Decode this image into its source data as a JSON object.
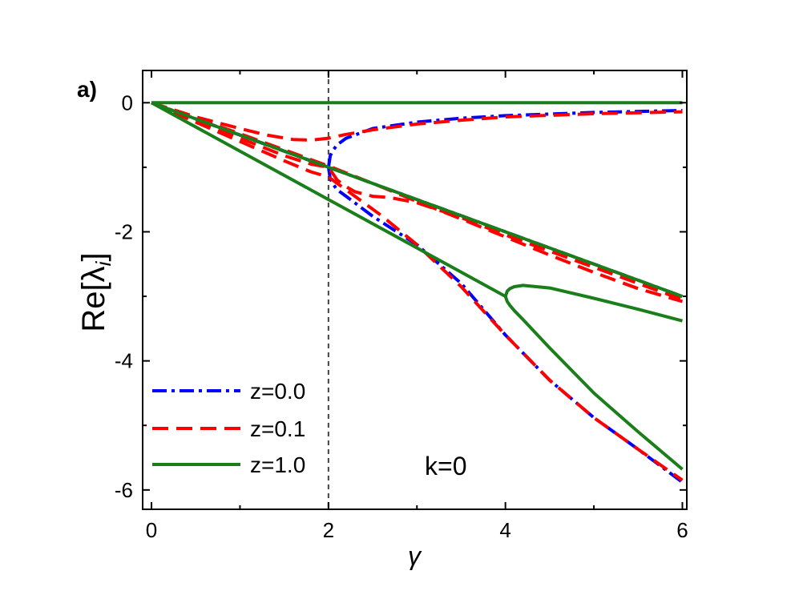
{
  "panel_label": "a)",
  "annotation": "k=0",
  "chart_data": {
    "type": "line",
    "xlabel": "γ",
    "ylabel_main": "Re[λ",
    "ylabel_sub": "i",
    "ylabel_close": "]",
    "xlim": [
      -0.1,
      6.05
    ],
    "ylim": [
      -6.3,
      0.5
    ],
    "x_ticks": [
      0,
      2,
      4,
      6
    ],
    "x_tick_labels": [
      "0",
      "2",
      "4",
      "6"
    ],
    "y_ticks": [
      0,
      -2,
      -4,
      -6
    ],
    "y_tick_labels": [
      "0",
      "-2",
      "-4",
      "-6"
    ],
    "vertical_marker_x": 2,
    "legend_position": "bottom-left",
    "legend": [
      {
        "label": "z=0.0",
        "color": "#0000ff",
        "style": "dashdot"
      },
      {
        "label": "z=0.1",
        "color": "#ff0000",
        "style": "dashed"
      },
      {
        "label": "z=1.0",
        "color": "#1a7f1a",
        "style": "solid"
      }
    ],
    "series": [
      {
        "legend_index": 0,
        "points": [
          [
            0,
            0
          ],
          [
            1,
            -0.5
          ],
          [
            2,
            -1
          ],
          [
            3,
            -1.5
          ],
          [
            4,
            -2
          ],
          [
            5,
            -2.5
          ],
          [
            6,
            -3
          ]
        ]
      },
      {
        "legend_index": 0,
        "points": [
          [
            0,
            0
          ],
          [
            0.5,
            -0.25
          ],
          [
            1,
            -0.5
          ],
          [
            1.5,
            -0.75
          ],
          [
            1.8,
            -0.9
          ],
          [
            2,
            -1
          ]
        ]
      },
      {
        "legend_index": 0,
        "points": [
          [
            2,
            -1
          ],
          [
            2.02,
            -0.82
          ],
          [
            2.05,
            -0.74
          ],
          [
            2.1,
            -0.65
          ],
          [
            2.2,
            -0.55
          ],
          [
            2.5,
            -0.4
          ],
          [
            3,
            -0.3
          ],
          [
            3.5,
            -0.24
          ],
          [
            4,
            -0.2
          ],
          [
            5,
            -0.15
          ],
          [
            6,
            -0.12
          ]
        ]
      },
      {
        "legend_index": 0,
        "points": [
          [
            2,
            -1
          ],
          [
            2.02,
            -1.18
          ],
          [
            2.05,
            -1.26
          ],
          [
            2.1,
            -1.35
          ],
          [
            2.2,
            -1.45
          ],
          [
            2.5,
            -1.76
          ],
          [
            3,
            -2.2
          ],
          [
            3.5,
            -2.8
          ],
          [
            4,
            -3.6
          ],
          [
            4.5,
            -4.3
          ],
          [
            5,
            -4.88
          ],
          [
            5.5,
            -5.37
          ],
          [
            6,
            -5.88
          ]
        ]
      },
      {
        "legend_index": 1,
        "points": [
          [
            0,
            0
          ],
          [
            0.5,
            -0.22
          ],
          [
            1,
            -0.4
          ],
          [
            1.3,
            -0.5
          ],
          [
            1.6,
            -0.57
          ],
          [
            1.8,
            -0.58
          ],
          [
            2,
            -0.55
          ],
          [
            2.2,
            -0.49
          ],
          [
            2.5,
            -0.42
          ],
          [
            3,
            -0.33
          ],
          [
            3.5,
            -0.27
          ],
          [
            4,
            -0.22
          ],
          [
            5,
            -0.17
          ],
          [
            6,
            -0.14
          ]
        ]
      },
      {
        "legend_index": 1,
        "points": [
          [
            0,
            0
          ],
          [
            0.5,
            -0.3
          ],
          [
            1,
            -0.6
          ],
          [
            1.5,
            -0.9
          ],
          [
            1.8,
            -1.07
          ],
          [
            2,
            -1.15
          ],
          [
            2.2,
            -1.35
          ],
          [
            2.4,
            -1.55
          ],
          [
            2.6,
            -1.75
          ],
          [
            3,
            -2.2
          ],
          [
            3.5,
            -2.85
          ],
          [
            4,
            -3.6
          ],
          [
            4.5,
            -4.3
          ],
          [
            5,
            -4.88
          ],
          [
            5.5,
            -5.37
          ],
          [
            6,
            -5.85
          ]
        ]
      },
      {
        "legend_index": 1,
        "points": [
          [
            0,
            0
          ],
          [
            0.5,
            -0.27
          ],
          [
            1,
            -0.55
          ],
          [
            1.5,
            -0.82
          ],
          [
            1.8,
            -0.95
          ],
          [
            2,
            -1.0
          ],
          [
            2.1,
            -1.2
          ],
          [
            2.2,
            -1.3
          ],
          [
            2.3,
            -1.38
          ],
          [
            2.5,
            -1.45
          ],
          [
            2.7,
            -1.47
          ],
          [
            3,
            -1.55
          ],
          [
            3.5,
            -1.78
          ],
          [
            4,
            -2.05
          ],
          [
            4.5,
            -2.3
          ],
          [
            5,
            -2.55
          ],
          [
            5.5,
            -2.8
          ],
          [
            6,
            -3.05
          ]
        ]
      },
      {
        "legend_index": 1,
        "points": [
          [
            0,
            0
          ],
          [
            0.5,
            -0.24
          ],
          [
            1,
            -0.48
          ],
          [
            1.5,
            -0.73
          ],
          [
            2,
            -0.98
          ],
          [
            2.5,
            -1.25
          ],
          [
            3,
            -1.53
          ],
          [
            3.5,
            -1.8
          ],
          [
            4,
            -2.08
          ],
          [
            4.5,
            -2.36
          ],
          [
            5,
            -2.63
          ],
          [
            5.5,
            -2.88
          ],
          [
            6,
            -3.08
          ]
        ]
      },
      {
        "legend_index": 2,
        "points": [
          [
            0,
            0
          ],
          [
            6,
            0
          ]
        ]
      },
      {
        "legend_index": 2,
        "points": [
          [
            0,
            0
          ],
          [
            1,
            -0.5
          ],
          [
            2,
            -1
          ],
          [
            3,
            -1.5
          ],
          [
            4,
            -2
          ],
          [
            5,
            -2.5
          ],
          [
            6,
            -3
          ]
        ]
      },
      {
        "legend_index": 2,
        "points": [
          [
            0,
            0
          ],
          [
            1,
            -0.75
          ],
          [
            2,
            -1.5
          ],
          [
            3,
            -2.25
          ],
          [
            4,
            -3
          ]
        ]
      },
      {
        "legend_index": 2,
        "points": [
          [
            4,
            -3
          ],
          [
            4.02,
            -2.92
          ],
          [
            4.05,
            -2.88
          ],
          [
            4.1,
            -2.85
          ],
          [
            4.2,
            -2.83
          ],
          [
            4.5,
            -2.87
          ],
          [
            5,
            -3.03
          ],
          [
            5.5,
            -3.2
          ],
          [
            6,
            -3.38
          ]
        ]
      },
      {
        "legend_index": 2,
        "points": [
          [
            4,
            -3
          ],
          [
            4.02,
            -3.08
          ],
          [
            4.05,
            -3.14
          ],
          [
            4.1,
            -3.22
          ],
          [
            4.2,
            -3.36
          ],
          [
            4.5,
            -3.8
          ],
          [
            5,
            -4.5
          ],
          [
            5.5,
            -5.1
          ],
          [
            6,
            -5.68
          ]
        ]
      }
    ]
  }
}
